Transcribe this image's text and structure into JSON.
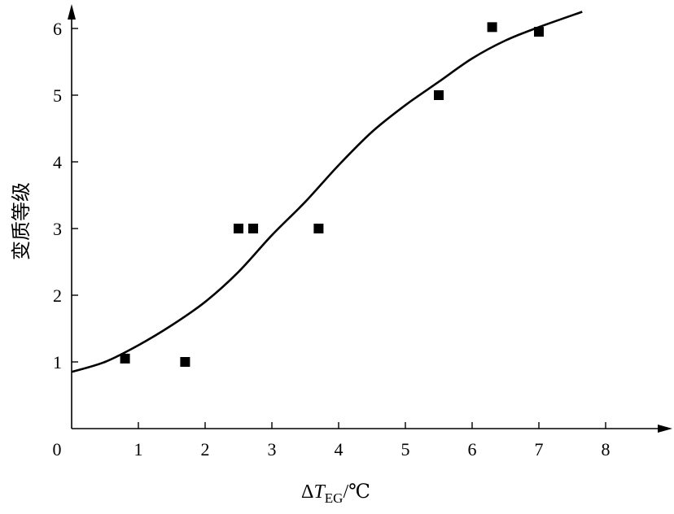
{
  "chart_data": {
    "type": "scatter",
    "title": "",
    "xlabel": {
      "prefix": "Δ",
      "symbol": "T",
      "subscript": "EG",
      "suffix": "/℃"
    },
    "ylabel": "变质等级",
    "xlim": [
      0,
      8.8
    ],
    "ylim": [
      0,
      6.5
    ],
    "x_ticks": [
      0,
      1,
      2,
      3,
      4,
      5,
      6,
      7,
      8
    ],
    "y_ticks": [
      1,
      2,
      3,
      4,
      5,
      6
    ],
    "origin_label": "0",
    "grid": false,
    "series": [
      {
        "kind": "markers",
        "marker": "square",
        "points": [
          {
            "x": 0.8,
            "y": 1.05
          },
          {
            "x": 1.7,
            "y": 1.0
          },
          {
            "x": 2.5,
            "y": 3.0
          },
          {
            "x": 2.72,
            "y": 3.0
          },
          {
            "x": 3.7,
            "y": 3.0
          },
          {
            "x": 5.5,
            "y": 5.0
          },
          {
            "x": 6.3,
            "y": 6.02
          },
          {
            "x": 7.0,
            "y": 5.95
          }
        ]
      },
      {
        "kind": "curve",
        "points": [
          {
            "x": 0.0,
            "y": 0.85
          },
          {
            "x": 0.5,
            "y": 1.0
          },
          {
            "x": 1.0,
            "y": 1.25
          },
          {
            "x": 1.5,
            "y": 1.55
          },
          {
            "x": 2.0,
            "y": 1.9
          },
          {
            "x": 2.5,
            "y": 2.35
          },
          {
            "x": 3.0,
            "y": 2.9
          },
          {
            "x": 3.5,
            "y": 3.4
          },
          {
            "x": 4.0,
            "y": 3.95
          },
          {
            "x": 4.5,
            "y": 4.45
          },
          {
            "x": 5.0,
            "y": 4.85
          },
          {
            "x": 5.5,
            "y": 5.2
          },
          {
            "x": 6.0,
            "y": 5.55
          },
          {
            "x": 6.5,
            "y": 5.82
          },
          {
            "x": 7.0,
            "y": 6.02
          },
          {
            "x": 7.65,
            "y": 6.25
          }
        ]
      }
    ]
  }
}
